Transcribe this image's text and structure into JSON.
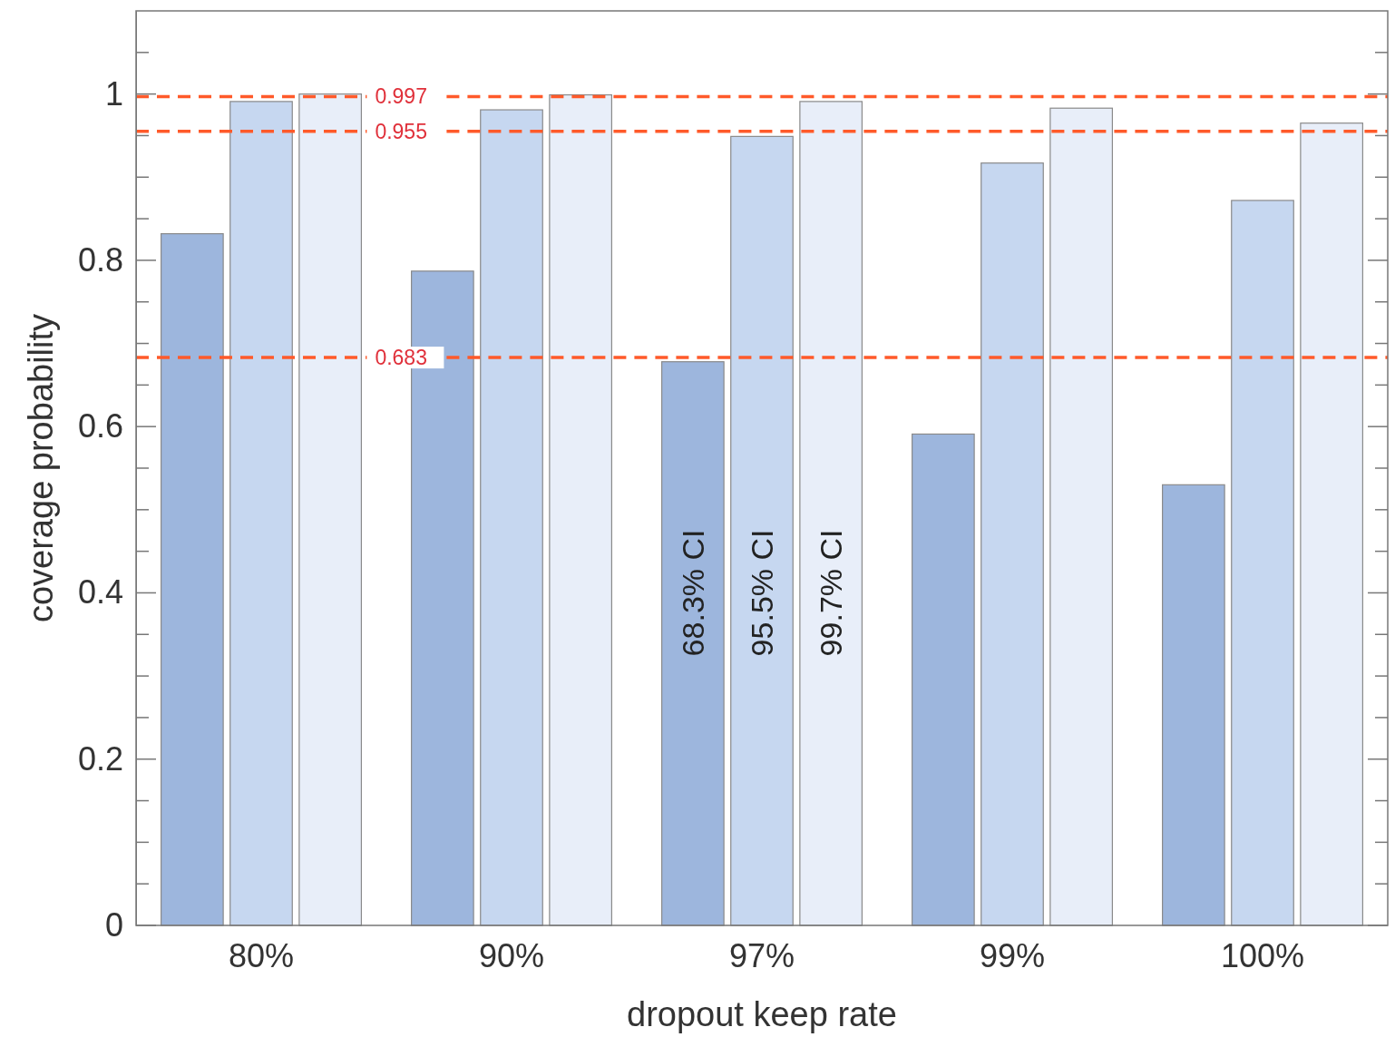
{
  "chart_data": {
    "type": "bar",
    "xlabel": "dropout keep rate",
    "ylabel": "coverage probability",
    "categories": [
      "80%",
      "90%",
      "97%",
      "99%",
      "100%"
    ],
    "series": [
      {
        "name": "68.3% CI",
        "color": "#9db6dd",
        "values": [
          0.832,
          0.787,
          0.678,
          0.591,
          0.53
        ]
      },
      {
        "name": "95.5% CI",
        "color": "#c6d7f0",
        "values": [
          0.991,
          0.981,
          0.949,
          0.917,
          0.872
        ]
      },
      {
        "name": "99.7% CI",
        "color": "#e8eef9",
        "values": [
          1.0,
          0.999,
          0.991,
          0.983,
          0.965
        ]
      }
    ],
    "ylim": [
      0,
      1.1
    ],
    "yticks": [
      0,
      {
        "value": 0.05,
        "label": null
      },
      {
        "value": 0.1,
        "label": null
      },
      {
        "value": 0.15,
        "label": null
      },
      0.2,
      {
        "value": 0.25,
        "label": null
      },
      {
        "value": 0.3,
        "label": null
      },
      {
        "value": 0.35,
        "label": null
      },
      0.4,
      {
        "value": 0.45,
        "label": null
      },
      {
        "value": 0.5,
        "label": null
      },
      {
        "value": 0.55,
        "label": null
      },
      0.6,
      {
        "value": 0.65,
        "label": null
      },
      {
        "value": 0.7,
        "label": null
      },
      {
        "value": 0.75,
        "label": null
      },
      0.8,
      {
        "value": 0.85,
        "label": null
      },
      {
        "value": 0.9,
        "label": null
      },
      {
        "value": 0.95,
        "label": null
      },
      1,
      {
        "value": 1.05,
        "label": null
      }
    ],
    "ref_lines": [
      {
        "axis": "y",
        "value": 0.997,
        "label": "0.997",
        "color": "#ff5a2a",
        "line_style": "dashed"
      },
      {
        "axis": "y",
        "value": 0.955,
        "label": "0.955",
        "color": "#ff5a2a",
        "line_style": "dashed"
      },
      {
        "axis": "y",
        "value": 0.683,
        "label": "0.683",
        "color": "#ff5a2a",
        "line_style": "dashed"
      }
    ]
  }
}
